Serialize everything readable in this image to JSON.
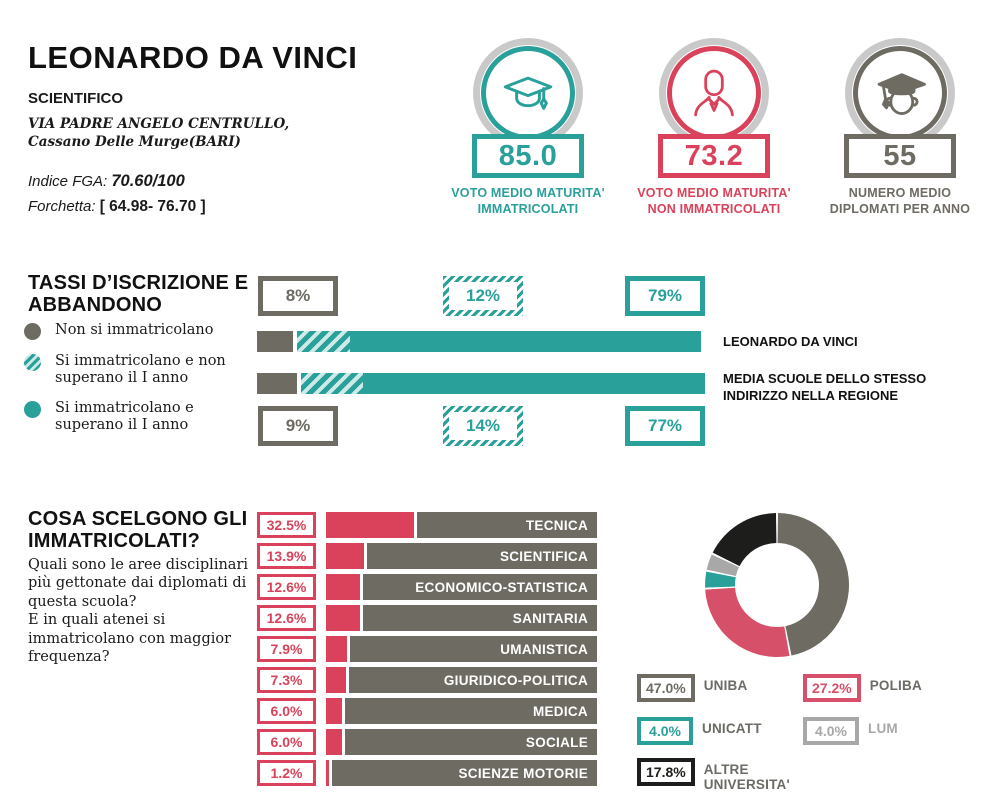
{
  "header": {
    "school_name": "LEONARDO DA VINCI",
    "track": "SCIENTIFICO",
    "address": "VIA PADRE ANGELO CENTRULLO, Cassano Delle Murge(BARI)",
    "fga_label": "Indice FGA:",
    "fga_value": "70.60/100",
    "forchetta_label": "Forchetta:",
    "forchetta_value": "[ 64.98- 76.70 ]"
  },
  "badges": [
    {
      "icon": "graduation-cap-icon",
      "value": "85.0",
      "label": [
        "VOTO MEDIO MATURITA'",
        "IMMATRICOLATI"
      ],
      "color": "#2aa09a"
    },
    {
      "icon": "person-icon",
      "value": "73.2",
      "label": [
        "VOTO MEDIO MATURITA'",
        "NON IMMATRICOLATI"
      ],
      "color": "#d9425a"
    },
    {
      "icon": "graduate-icon",
      "value": "55",
      "label": [
        "NUMERO MEDIO",
        "DIPLOMATI PER ANNO"
      ],
      "color": "#6e6b62"
    }
  ],
  "sections": {
    "tassi": {
      "title": [
        "TASSI D’ISCRIZIONE E",
        "ABBANDONO"
      ]
    },
    "cosa": {
      "title": [
        "COSA SCELGONO GLI",
        "IMMATRICOLATI?"
      ],
      "description": [
        "Quali sono le aree disciplinari più gettonate dai diplomati di questa scuola?",
        "E in quali atenei si immatricolano con maggior frequenza?"
      ]
    }
  },
  "chart_data": [
    {
      "type": "bar",
      "subtype": "stacked-horizontal",
      "title": "TASSI D'ISCRIZIONE E ABBANDONO",
      "unit": "%",
      "categories": [
        "LEONARDO DA VINCI",
        "MEDIA SCUOLE DELLO STESSO INDIRIZZO NELLA REGIONE"
      ],
      "series": [
        {
          "name": "Non si immatricolano",
          "values": [
            8,
            9
          ],
          "color": "#6e6b62",
          "pattern": "solid"
        },
        {
          "name": "Si immatricolano e non superano il I anno",
          "values": [
            12,
            14
          ],
          "color": "#2aa09a",
          "pattern": "hatched"
        },
        {
          "name": "Si immatricolano e superano il I anno",
          "values": [
            79,
            77
          ],
          "color": "#2aa09a",
          "pattern": "solid"
        }
      ],
      "legend_position": "left",
      "xlim": [
        0,
        100
      ]
    },
    {
      "type": "bar",
      "subtype": "horizontal",
      "title": "COSA SCELGONO GLI IMMATRICOLATI? - aree disciplinari",
      "unit": "%",
      "categories": [
        "TECNICA",
        "SCIENTIFICA",
        "ECONOMICO-STATISTICA",
        "SANITARIA",
        "UMANISTICA",
        "GIURIDICO-POLITICA",
        "MEDICA",
        "SOCIALE",
        "SCIENZE MOTORIE"
      ],
      "values": [
        32.5,
        13.9,
        12.6,
        12.6,
        7.9,
        7.3,
        6.0,
        6.0,
        1.2
      ],
      "bar_color": "#d9425a",
      "label_bar_color": "#6e6b62",
      "xlim": [
        0,
        100
      ]
    },
    {
      "type": "pie",
      "subtype": "donut",
      "title": "COSA SCELGONO GLI IMMATRICOLATI? - atenei",
      "unit": "%",
      "labels": [
        "UNIBA",
        "POLIBA",
        "UNICATT",
        "LUM",
        "ALTRE UNIVERSITA'"
      ],
      "values": [
        47.0,
        27.2,
        4.0,
        4.0,
        17.8
      ],
      "colors": [
        "#6e6b62",
        "#d7506a",
        "#2aa09a",
        "#a8a8a8",
        "#1d1d1b"
      ],
      "legend_label_colors": [
        "#6b6b66",
        "#6b6b66",
        "#6b6b66",
        "#a8a8a8",
        "#6b6b66"
      ],
      "start_angle_deg": 0,
      "direction": "clockwise",
      "legend_position": "bottom"
    }
  ],
  "colors": {
    "teal": "#2aa09a",
    "red": "#d9425a",
    "olive_gray": "#6e6b62",
    "light_gray": "#a8a8a8",
    "ring_gray": "#c9c9c9",
    "black": "#1d1d1b",
    "legend_label_gray": "#6b6b66"
  }
}
